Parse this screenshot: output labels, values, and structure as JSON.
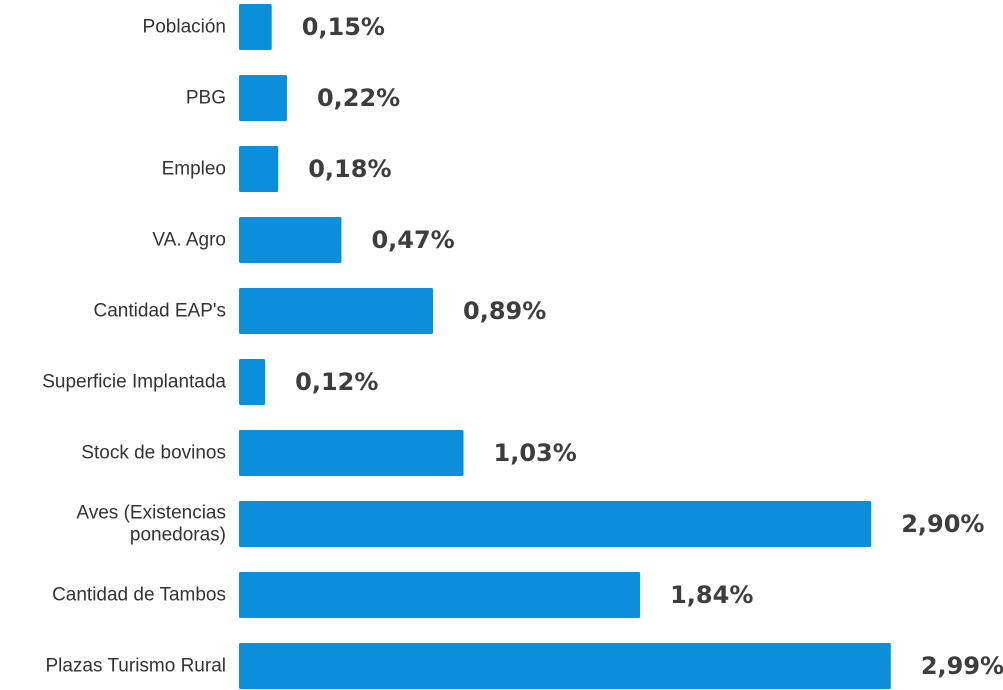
{
  "chart_data": {
    "type": "bar",
    "orientation": "horizontal",
    "categories": [
      "Población",
      "PBG",
      "Empleo",
      "VA. Agro",
      "Cantidad EAP's",
      "Superficie Implantada",
      "Stock de bovinos",
      "Aves (Existencias ponedoras)",
      "Cantidad de Tambos",
      "Plazas Turismo Rural"
    ],
    "values": [
      0.15,
      0.22,
      0.18,
      0.47,
      0.89,
      0.12,
      1.03,
      2.9,
      1.84,
      2.99
    ],
    "value_labels": [
      "0,15%",
      "0,22%",
      "0,18%",
      "0,47%",
      "0,89%",
      "0,12%",
      "1,03%",
      "2,90%",
      "1,84%",
      "2,99%"
    ],
    "bar_color": "#0b8fdb",
    "title": "",
    "xlabel": "",
    "ylabel": "",
    "grid": false,
    "legend": false
  }
}
